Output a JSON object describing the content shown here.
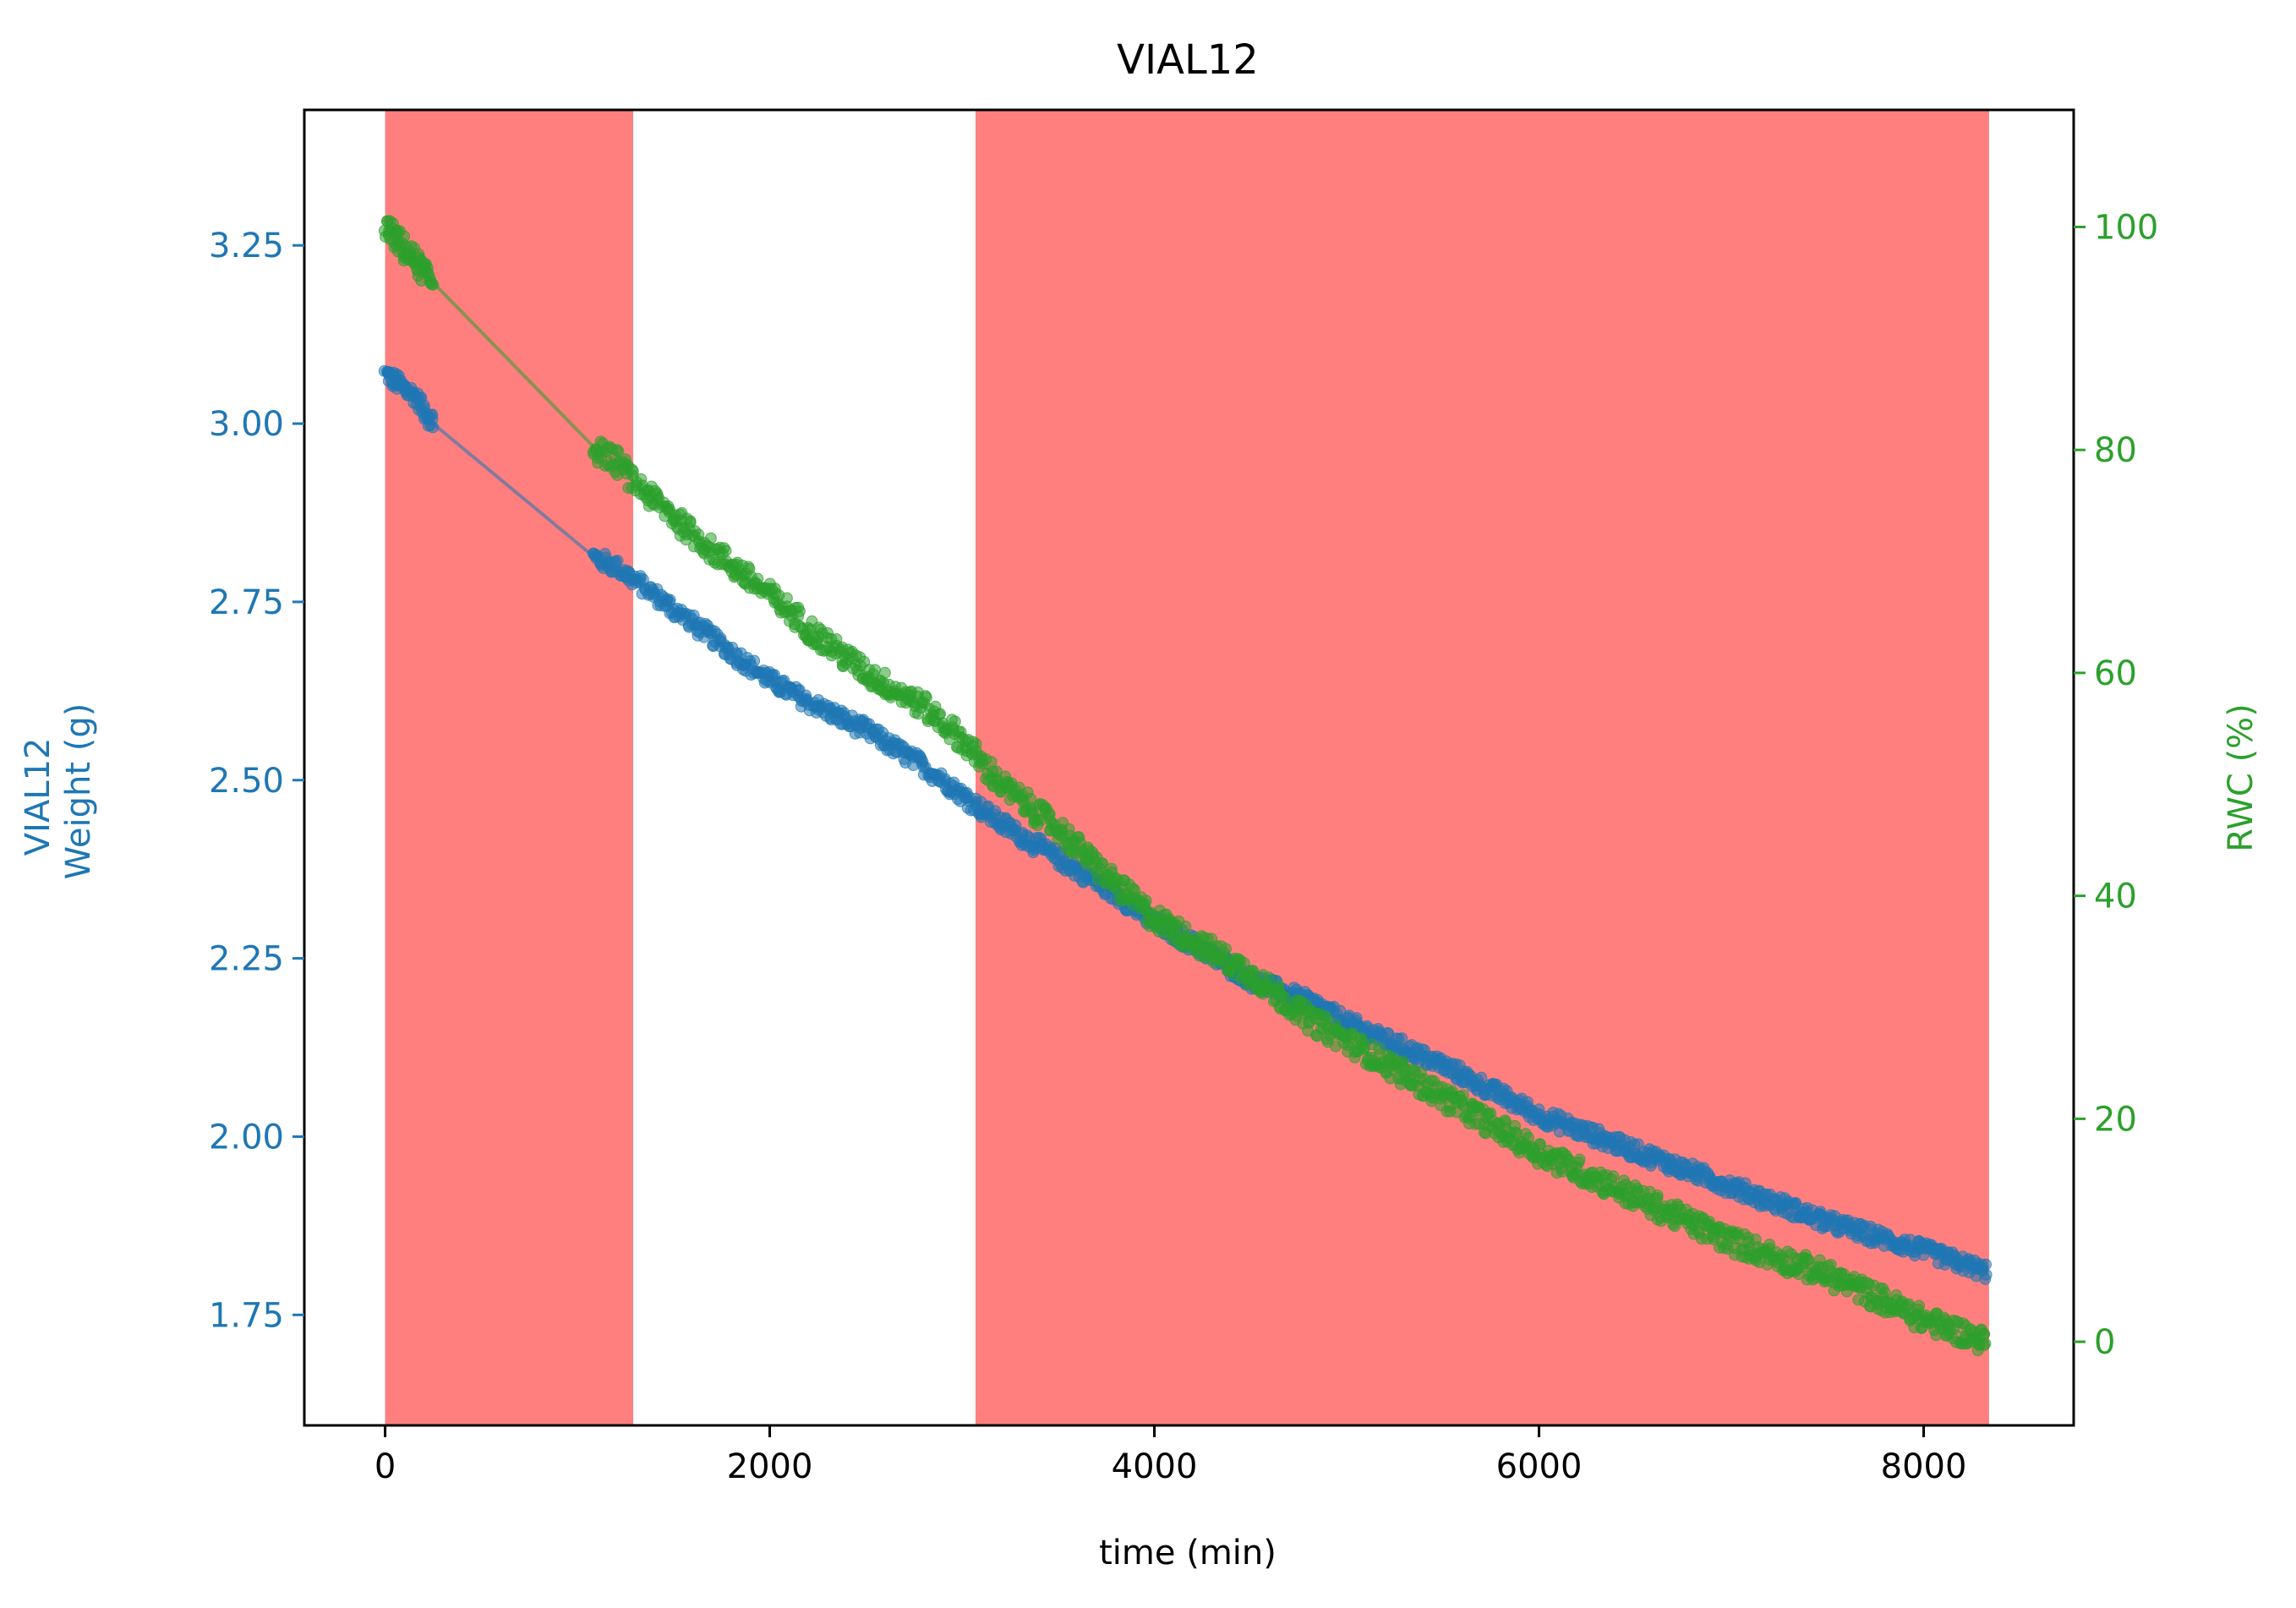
{
  "chart_data": {
    "type": "scatter",
    "title": "VIAL12",
    "xlabel": "time (min)",
    "ylabel_left_lines": [
      "VIAL12",
      "Weight (g)"
    ],
    "ylabel_right": "RWC (%)",
    "xlim": [
      -420,
      8780
    ],
    "ylim_left": [
      1.595,
      3.44
    ],
    "ylim_right": [
      -7.5,
      110.5
    ],
    "x_ticks": [
      0,
      2000,
      4000,
      6000,
      8000
    ],
    "y_left_ticks": [
      1.75,
      2.0,
      2.25,
      2.5,
      2.75,
      3.0,
      3.25
    ],
    "y_right_ticks": [
      0,
      20,
      40,
      60,
      80,
      100
    ],
    "grid": false,
    "shaded_regions": [
      [
        0,
        1290
      ],
      [
        3070,
        8340
      ]
    ],
    "colors": {
      "weight": "#1f77b4",
      "rwc": "#2ca02c",
      "shade": "#ff7f7f",
      "axes": "#000000"
    },
    "series": [
      {
        "axis": "left",
        "x": [
          0,
          50,
          100,
          150,
          200,
          250,
          1100,
          1200,
          1300,
          1500,
          1700,
          2000,
          2200,
          2500,
          2800,
          3000,
          3200,
          3500,
          3800,
          4000,
          4200,
          4500,
          4800,
          5000,
          5500,
          6000,
          6500,
          7000,
          7500,
          8000,
          8330
        ],
        "y": [
          3.07,
          3.06,
          3.05,
          3.04,
          3.02,
          3.0,
          2.81,
          2.8,
          2.78,
          2.74,
          2.7,
          2.64,
          2.61,
          2.57,
          2.52,
          2.48,
          2.44,
          2.39,
          2.34,
          2.3,
          2.27,
          2.22,
          2.19,
          2.16,
          2.1,
          2.03,
          1.98,
          1.93,
          1.88,
          1.84,
          1.81
        ]
      },
      {
        "axis": "right",
        "x": [
          0,
          50,
          100,
          150,
          200,
          250,
          1100,
          1200,
          1300,
          1500,
          1700,
          2000,
          2200,
          2500,
          2800,
          3000,
          3200,
          3500,
          3800,
          4000,
          4200,
          4500,
          4800,
          5000,
          5500,
          6000,
          6500,
          7000,
          7500,
          8000,
          8330
        ],
        "y": [
          100,
          99,
          98,
          97,
          96,
          95,
          80,
          79,
          77,
          74,
          71,
          67,
          64,
          60,
          57,
          54,
          50,
          46,
          41,
          38,
          36,
          33,
          29,
          27,
          22,
          17,
          13,
          9,
          6,
          2,
          0
        ]
      }
    ]
  }
}
